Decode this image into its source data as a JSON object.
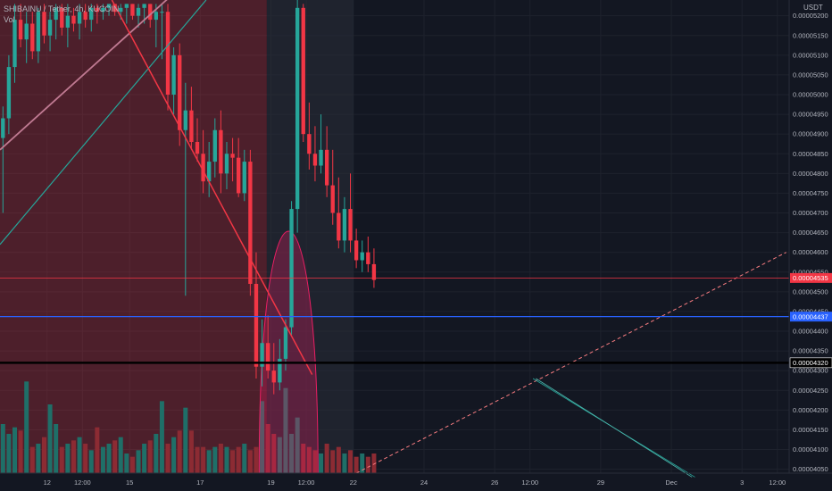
{
  "chart_data": {
    "type": "candlestick",
    "title": "SHIBAINU / Tether, 4h, KUCOIN",
    "volume_label": "Vol",
    "price_unit": "USDT",
    "y_ticks": [
      "0.00004050",
      "0.00004100",
      "0.00004150",
      "0.00004200",
      "0.00004250",
      "0.00004300",
      "0.00004350",
      "0.00004400",
      "0.00004450",
      "0.00004500",
      "0.00004550",
      "0.00004600",
      "0.00004650",
      "0.00004700",
      "0.00004750",
      "0.00004800",
      "0.00004850",
      "0.00004900",
      "0.00004950",
      "0.00005000",
      "0.00005050",
      "0.00005100",
      "0.00005150",
      "0.00005200"
    ],
    "ylim": [
      4.04e-05,
      5.24e-05
    ],
    "x_ticks": [
      {
        "label": "12",
        "bar": 7.5
      },
      {
        "label": "12:00",
        "bar": 13.5
      },
      {
        "label": "15",
        "bar": 21.5
      },
      {
        "label": "17",
        "bar": 33.5
      },
      {
        "label": "19",
        "bar": 45.5
      },
      {
        "label": "12:00",
        "bar": 51.5
      },
      {
        "label": "22",
        "bar": 59.5
      },
      {
        "label": "24",
        "bar": 71.5
      },
      {
        "label": "26",
        "bar": 83.5
      },
      {
        "label": "12:00",
        "bar": 89.5
      },
      {
        "label": "29",
        "bar": 101.5
      },
      {
        "label": "Dec",
        "bar": 113.5
      },
      {
        "label": "3",
        "bar": 125.5
      },
      {
        "label": "12:00",
        "bar": 131.5
      }
    ],
    "xlim": [
      -0.5,
      133.5
    ],
    "candles": [
      [
        4.89e-05,
        4.97e-05,
        4.7e-05,
        4.94e-05
      ],
      [
        4.94e-05,
        5.1e-05,
        4.9e-05,
        5.07e-05
      ],
      [
        5.07e-05,
        5.23e-05,
        5.03e-05,
        5.19e-05
      ],
      [
        5.19e-05,
        5.23e-05,
        5.12e-05,
        5.14e-05
      ],
      [
        5.14e-05,
        5.21e-05,
        5.08e-05,
        5.18e-05
      ],
      [
        5.18e-05,
        5.21e-05,
        5.09e-05,
        5.11e-05
      ],
      [
        5.11e-05,
        5.22e-05,
        5.08e-05,
        5.21e-05
      ],
      [
        5.21e-05,
        5.23e-05,
        5.13e-05,
        5.15e-05
      ],
      [
        5.15e-05,
        5.21e-05,
        5.11e-05,
        5.19e-05
      ],
      [
        5.19e-05,
        5.23e-05,
        5.14e-05,
        5.22e-05
      ],
      [
        5.22e-05,
        5.23e-05,
        5.15e-05,
        5.17e-05
      ],
      [
        5.17e-05,
        5.23e-05,
        5.12e-05,
        5.2e-05
      ],
      [
        5.2e-05,
        5.22e-05,
        5.16e-05,
        5.18e-05
      ],
      [
        5.18e-05,
        5.23e-05,
        5.14e-05,
        5.21e-05
      ],
      [
        5.21e-05,
        5.23e-05,
        5.17e-05,
        5.19e-05
      ],
      [
        5.19e-05,
        5.23e-05,
        5.16e-05,
        5.22e-05
      ],
      [
        5.22e-05,
        5.23e-05,
        5.18e-05,
        5.21e-05
      ],
      [
        5.21e-05,
        5.23e-05,
        5.19e-05,
        5.22e-05
      ],
      [
        5.22e-05,
        5.23e-05,
        5.2e-05,
        5.23e-05
      ],
      [
        5.23e-05,
        5.23e-05,
        5.2e-05,
        5.21e-05
      ],
      [
        5.21e-05,
        5.23e-05,
        5.19e-05,
        5.22e-05
      ],
      [
        5.22e-05,
        5.23e-05,
        5.18e-05,
        5.23e-05
      ],
      [
        5.23e-05,
        5.23e-05,
        5.19e-05,
        5.2e-05
      ],
      [
        5.2e-05,
        5.23e-05,
        5.17e-05,
        5.22e-05
      ],
      [
        5.22e-05,
        5.23e-05,
        5.18e-05,
        5.23e-05
      ],
      [
        5.23e-05,
        5.23e-05,
        5.17e-05,
        5.19e-05
      ],
      [
        5.19e-05,
        5.23e-05,
        5.12e-05,
        5.21e-05
      ],
      [
        5.21e-05,
        5.23e-05,
        5.09e-05,
        5.21e-05
      ],
      [
        5.21e-05,
        5.23e-05,
        4.96e-05,
        5e-05
      ],
      [
        5e-05,
        5.12e-05,
        4.95e-05,
        5.1e-05
      ],
      [
        5.1e-05,
        5.13e-05,
        4.87e-05,
        4.91e-05
      ],
      [
        4.91e-05,
        5.03e-05,
        4.49e-05,
        4.96e-05
      ],
      [
        4.96e-05,
        5.02e-05,
        4.86e-05,
        4.88e-05
      ],
      [
        4.88e-05,
        4.94e-05,
        4.83e-05,
        4.85e-05
      ],
      [
        4.85e-05,
        4.91e-05,
        4.75e-05,
        4.78e-05
      ],
      [
        4.78e-05,
        4.88e-05,
        4.74e-05,
        4.83e-05
      ],
      [
        4.83e-05,
        4.94e-05,
        4.79e-05,
        4.91e-05
      ],
      [
        4.91e-05,
        4.96e-05,
        4.75e-05,
        4.8e-05
      ],
      [
        4.8e-05,
        4.88e-05,
        4.76e-05,
        4.85e-05
      ],
      [
        4.85e-05,
        4.89e-05,
        4.78e-05,
        4.84e-05
      ],
      [
        4.84e-05,
        4.89e-05,
        4.74e-05,
        4.75e-05
      ],
      [
        4.75e-05,
        4.86e-05,
        4.73e-05,
        4.83e-05
      ],
      [
        4.83e-05,
        4.86e-05,
        4.49e-05,
        4.52e-05
      ],
      [
        4.52e-05,
        4.6e-05,
        4.28e-05,
        4.31e-05
      ],
      [
        4.31e-05,
        4.43e-05,
        4.26e-05,
        4.37e-05
      ],
      [
        4.37e-05,
        4.44e-05,
        4.28e-05,
        4.3e-05
      ],
      [
        4.3e-05,
        4.37e-05,
        4.24e-05,
        4.27e-05
      ],
      [
        4.27e-05,
        4.38e-05,
        4.25e-05,
        4.33e-05
      ],
      [
        4.33e-05,
        4.43e-05,
        4.3e-05,
        4.41e-05
      ],
      [
        4.41e-05,
        4.73e-05,
        4.39e-05,
        4.71e-05
      ],
      [
        4.71e-05,
        5.24e-05,
        4.65e-05,
        5.22e-05
      ],
      [
        5.22e-05,
        5.23e-05,
        4.88e-05,
        4.9e-05
      ],
      [
        4.9e-05,
        4.98e-05,
        4.81e-05,
        4.85e-05
      ],
      [
        4.85e-05,
        4.92e-05,
        4.78e-05,
        4.82e-05
      ],
      [
        4.82e-05,
        4.95e-05,
        4.8e-05,
        4.86e-05
      ],
      [
        4.86e-05,
        4.92e-05,
        4.74e-05,
        4.77e-05
      ],
      [
        4.77e-05,
        4.86e-05,
        4.67e-05,
        4.7e-05
      ],
      [
        4.7e-05,
        4.79e-05,
        4.61e-05,
        4.63e-05
      ],
      [
        4.63e-05,
        4.74e-05,
        4.6e-05,
        4.71e-05
      ],
      [
        4.71e-05,
        4.8e-05,
        4.6e-05,
        4.63e-05
      ],
      [
        4.63e-05,
        4.66e-05,
        4.56e-05,
        4.58e-05
      ],
      [
        4.58e-05,
        4.63e-05,
        4.55e-05,
        4.6e-05
      ],
      [
        4.6e-05,
        4.64e-05,
        4.55e-05,
        4.57e-05
      ],
      [
        4.57e-05,
        4.61e-05,
        4.51e-05,
        4.53e-05
      ]
    ],
    "volumes": [
      15,
      12,
      14,
      13,
      28,
      8,
      9,
      11,
      21,
      15,
      8,
      9,
      10,
      11,
      9,
      7,
      14,
      8,
      9,
      10,
      11,
      6,
      5,
      7,
      9,
      10,
      12,
      22,
      9,
      11,
      13,
      20,
      13,
      8,
      8,
      7,
      8,
      9,
      8,
      7,
      8,
      9,
      7,
      8,
      22,
      15,
      12,
      11,
      26,
      12,
      17,
      9,
      8,
      7,
      6,
      9,
      7,
      8,
      6,
      7,
      5,
      6,
      5,
      6
    ],
    "volume_ylim": [
      0,
      36
    ],
    "regions": [
      {
        "from_bar": -0.5,
        "to_bar": 44.8,
        "color": "#f23645",
        "opacity": 0.26
      },
      {
        "from_bar": 44.8,
        "to_bar": 59.5,
        "color": "#2a2e39",
        "opacity": 0.55
      }
    ],
    "arc": {
      "from_bar": 43.5,
      "to_bar": 53.5,
      "peak_price": 4.655e-05,
      "base_price": 4.04e-05,
      "fill": "#e91e63",
      "opacity": 0.3,
      "stroke": "#e91e63"
    },
    "trendlines": [
      {
        "from": [
          -0.5,
          4.86e-05
        ],
        "to": [
          28.5,
          5.25e-05
        ],
        "color": "#c07a92",
        "width": 1.8,
        "dash": false
      },
      {
        "from": [
          -0.5,
          4.62e-05
        ],
        "to": [
          34.5,
          5.24e-05
        ],
        "color": "#26a69a",
        "width": 1.2,
        "dash": false
      },
      {
        "from": [
          18.5,
          5.24e-05
        ],
        "to": [
          52.5,
          4.29e-05
        ],
        "color": "#f23645",
        "width": 1.5,
        "dash": false
      },
      {
        "from": [
          60.0,
          4.04e-05
        ],
        "to": [
          133.0,
          4.6e-05
        ],
        "color": "#f77c80",
        "width": 1.0,
        "dash": true
      },
      {
        "from": [
          90.0,
          4.28e-05
        ],
        "to": [
          117.5,
          4.03e-05
        ],
        "color": "#26a69a",
        "width": 0.8,
        "dash": false
      },
      {
        "from": [
          90.5,
          4.28e-05
        ],
        "to": [
          117.0,
          4.03e-05
        ],
        "color": "#4db6ac",
        "width": 0.8,
        "dash": false
      }
    ],
    "price_lines": [
      {
        "price": 4.535e-05,
        "label": "0.00004535",
        "color": "#f23645",
        "width": 0.8,
        "badge_bg": "#f23645"
      },
      {
        "price": 4.437e-05,
        "label": "0.00004437",
        "color": "#2962ff",
        "width": 1.2,
        "badge_bg": "#2962ff"
      },
      {
        "price": 4.32e-05,
        "label": "0.00004320",
        "color": "#000000",
        "width": 2.5,
        "badge_bg": "#000000"
      }
    ],
    "colors": {
      "up": "#26a69a",
      "down": "#f23645",
      "up_volume": "#1f6f68",
      "down_volume": "#8c2b33",
      "background": "#131722",
      "grid": "#1e222d",
      "axis_text": "#b2b5be"
    }
  }
}
